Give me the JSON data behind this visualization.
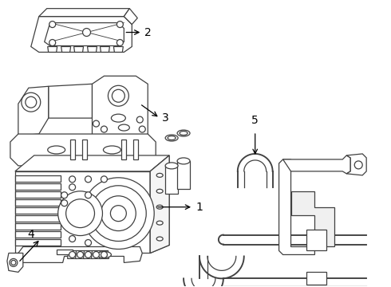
{
  "background_color": "#ffffff",
  "line_color": "#404040",
  "lw": 0.9,
  "figsize": [
    4.9,
    3.6
  ],
  "dpi": 100
}
